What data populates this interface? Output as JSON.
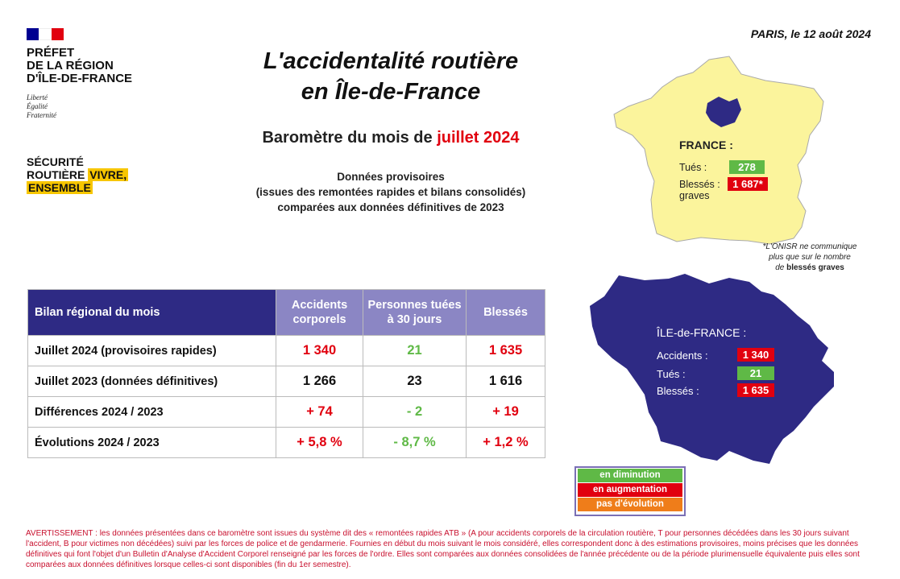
{
  "header": {
    "logo_lines": [
      "PRÉFET",
      "DE LA RÉGION",
      "D'ÎLE-DE-FRANCE"
    ],
    "devise": [
      "Liberté",
      "Égalité",
      "Fraternité"
    ],
    "securite_line1": "SÉCURITÉ",
    "securite_line2a": "ROUTIÈRE",
    "securite_line2b": "VIVRE,",
    "securite_line3": "ENSEMBLE",
    "dateline": "PARIS, le 12 août 2024"
  },
  "title_line1": "L'accidentalité routière",
  "title_line2": "en Île-de-France",
  "subtitle_prefix": "Baromètre du mois de",
  "subtitle_month": "juillet 2024",
  "description": [
    "Données provisoires",
    "(issues des remontées rapides et bilans consolidés)",
    "comparées aux données définitives de 2023"
  ],
  "table": {
    "headers": [
      "Bilan régional du mois",
      "Accidents corporels",
      "Personnes tuées à 30 jours",
      "Blessés"
    ],
    "rows": [
      {
        "label": "Juillet 2024 (provisoires rapides)",
        "values": [
          "1 340",
          "21",
          "1 635"
        ],
        "colors": [
          "red",
          "green",
          "red"
        ]
      },
      {
        "label": "Juillet 2023 (données définitives)",
        "values": [
          "1 266",
          "23",
          "1 616"
        ],
        "colors": [
          "black",
          "black",
          "black"
        ]
      },
      {
        "label": "Différences 2024 / 2023",
        "values": [
          "+ 74",
          "- 2",
          "+ 19"
        ],
        "colors": [
          "red",
          "green",
          "red"
        ]
      },
      {
        "label": "Évolutions 2024 / 2023",
        "values": [
          "+ 5,8 %",
          "- 8,7 %",
          "+ 1,2 %"
        ],
        "colors": [
          "red",
          "green",
          "red"
        ]
      }
    ]
  },
  "france": {
    "label": "FRANCE :",
    "tues_label": "Tués :",
    "tues_value": "278",
    "blesses_label1": "Blessés :",
    "blesses_label2": "graves",
    "blesses_value": "1 687*",
    "map_color": "#fbf49c",
    "idf_color": "#2e2a84"
  },
  "onisr_note": [
    "*L'ONISR ne communique",
    "plus que sur le nombre",
    "de",
    "blessés graves"
  ],
  "idf": {
    "label": "ÎLE-de-FRANCE :",
    "accidents_label": "Accidents :",
    "accidents_value": "1 340",
    "tues_label": "Tués :",
    "tues_value": "21",
    "blesses_label": "Blessés :",
    "blesses_value": "1 635",
    "map_color": "#2e2a84"
  },
  "legend": {
    "items": [
      {
        "label": "en diminution",
        "color": "#5fb946"
      },
      {
        "label": "en augmentation",
        "color": "#e1000f"
      },
      {
        "label": "pas d'évolution",
        "color": "#ef7d1a"
      }
    ]
  },
  "warning": "AVERTISSEMENT : les données présentées dans ce baromètre sont issues du système dit des « remontées rapides ATB » (A pour accidents corporels de la circulation routière, T pour personnes décédées dans les 30 jours suivant l'accident, B pour victimes non décédées) suivi par les forces de police et de gendarmerie. Fournies en début du mois suivant le mois considéré, elles correspondent donc à des estimations provisoires, moins précises que les données définitives qui font l'objet d'un Bulletin d'Analyse d'Accident Corporel renseigné par les forces de l'ordre. Elles sont comparées aux données consolidées de l'année précédente ou de la période plurimensuelle équivalente puis elles sont comparées aux données définitives lorsque celles-ci sont disponibles (fin du 1er semestre)."
}
